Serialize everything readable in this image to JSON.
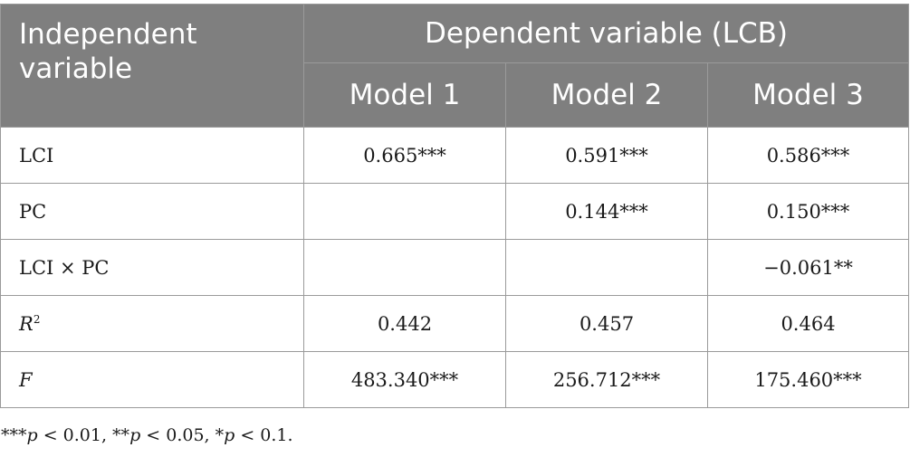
{
  "table": {
    "header": {
      "independent_label": "Independent variable",
      "dependent_label": "Dependent variable (LCB)",
      "models": [
        "Model 1",
        "Model 2",
        "Model 3"
      ]
    },
    "rows": [
      {
        "variable": "LCI",
        "italic": false,
        "values": [
          "0.665***",
          "0.591***",
          "0.586***"
        ]
      },
      {
        "variable": "PC",
        "italic": false,
        "values": [
          "",
          "0.144***",
          "0.150***"
        ]
      },
      {
        "variable": "LCI × PC",
        "italic": false,
        "values": [
          "",
          "",
          "−0.061**"
        ]
      },
      {
        "variable": "R",
        "superscript": "2",
        "italic": true,
        "values": [
          "0.442",
          "0.457",
          "0.464"
        ]
      },
      {
        "variable": "F",
        "italic": true,
        "values": [
          "483.340***",
          "256.712***",
          "175.460***"
        ]
      }
    ]
  },
  "footnote": {
    "parts": [
      {
        "text": "***",
        "italic": false
      },
      {
        "text": "p",
        "italic": true
      },
      {
        "text": " < 0.01, **",
        "italic": false
      },
      {
        "text": "p",
        "italic": true
      },
      {
        "text": " < 0.05, *",
        "italic": false
      },
      {
        "text": "p",
        "italic": true
      },
      {
        "text": " < 0.1.",
        "italic": false
      }
    ]
  }
}
